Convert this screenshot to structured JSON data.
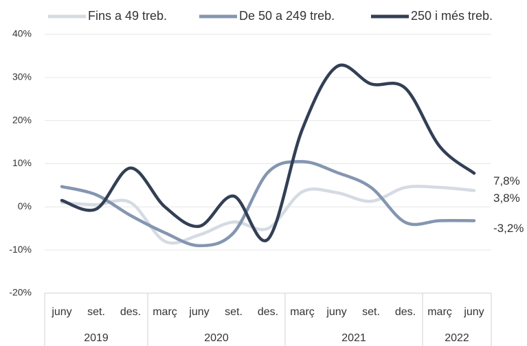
{
  "chart_data": {
    "type": "line",
    "categories": [
      "juny",
      "set.",
      "des.",
      "març",
      "juny",
      "set.",
      "des.",
      "març",
      "juny",
      "set.",
      "des.",
      "març",
      "juny"
    ],
    "groups": [
      {
        "label": "2019",
        "span": 3
      },
      {
        "label": "2020",
        "span": 4
      },
      {
        "label": "2021",
        "span": 4
      },
      {
        "label": "2022",
        "span": 2
      }
    ],
    "series": [
      {
        "name": "Fins a 49 treb.",
        "color": "#d5dbe3",
        "values": [
          1,
          0.5,
          1,
          -8,
          -6.5,
          -3.5,
          -5,
          3.5,
          3.3,
          1.3,
          4.5,
          4.5,
          3.8
        ],
        "value_labels": [
          null,
          null,
          null,
          null,
          null,
          null,
          null,
          null,
          null,
          null,
          null,
          null,
          "3,8%"
        ]
      },
      {
        "name": "De 50 a 249 treb.",
        "color": "#8496b0",
        "values": [
          4.7,
          2.8,
          -2,
          -6,
          -9,
          -6,
          8,
          10.5,
          8,
          4.5,
          -3.6,
          -3.2,
          -3.2
        ],
        "value_labels": [
          null,
          null,
          null,
          null,
          null,
          null,
          null,
          null,
          null,
          null,
          null,
          null,
          "-3,2%"
        ]
      },
      {
        "name": "250 i més treb.",
        "color": "#323f54",
        "values": [
          1.5,
          -0.5,
          9,
          0,
          -4.5,
          2.5,
          -7.5,
          18,
          32.5,
          28.5,
          27.5,
          14,
          7.8
        ],
        "value_labels": [
          null,
          null,
          null,
          null,
          null,
          null,
          null,
          null,
          null,
          null,
          null,
          null,
          "7,8%"
        ]
      }
    ],
    "ylim": [
      -20,
      40
    ],
    "yticks": [
      {
        "value": -20,
        "label": "-20%"
      },
      {
        "value": -10,
        "label": "-10%"
      },
      {
        "value": 0,
        "label": "0%"
      },
      {
        "value": 10,
        "label": "10%"
      },
      {
        "value": 20,
        "label": "20%"
      },
      {
        "value": 30,
        "label": "30%"
      },
      {
        "value": 40,
        "label": "40%"
      }
    ],
    "grid": true
  }
}
